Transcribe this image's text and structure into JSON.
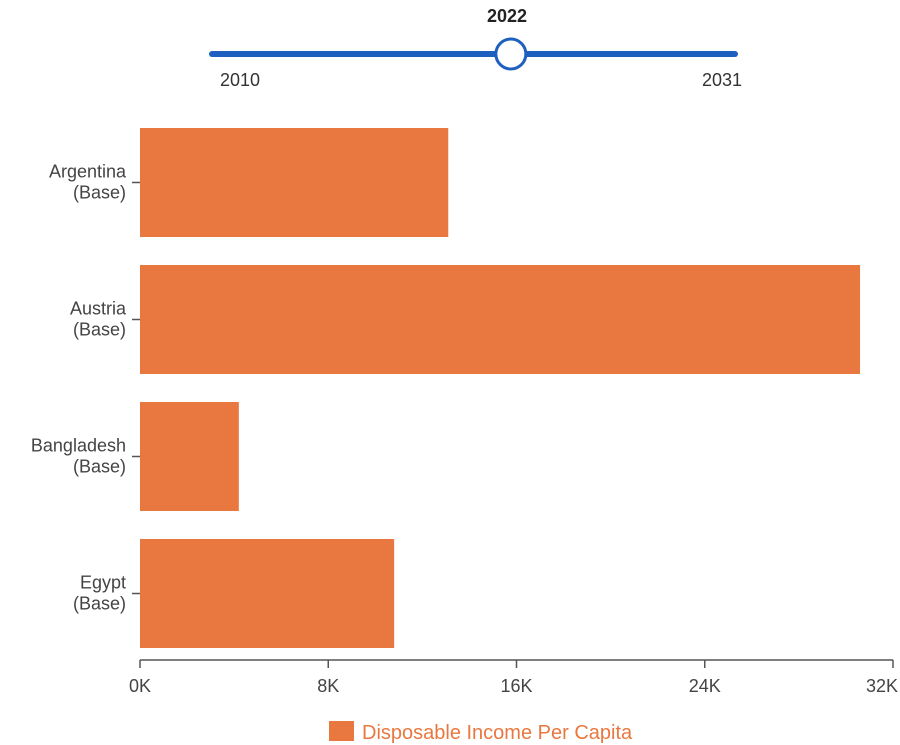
{
  "slider": {
    "current_label": "2022",
    "min_label": "2010",
    "max_label": "2031",
    "min": 2010,
    "max": 2031,
    "value": 2022,
    "track_color": "#1f5fbf",
    "thumb_fill": "#ffffff"
  },
  "chart_data": {
    "type": "bar",
    "orientation": "horizontal",
    "categories": [
      [
        "Argentina",
        "(Base)"
      ],
      [
        "Austria",
        "(Base)"
      ],
      [
        "Bangladesh",
        "(Base)"
      ],
      [
        "Egypt",
        "(Base)"
      ]
    ],
    "series": [
      {
        "name": "Disposable Income Per Capita",
        "color": "#e8783f",
        "values": [
          13100,
          30600,
          4200,
          10800
        ]
      }
    ],
    "x_ticks": [
      0,
      8000,
      16000,
      24000,
      32000
    ],
    "x_tick_labels": [
      "0K",
      "8K",
      "16K",
      "24K",
      "32K"
    ],
    "xlim": [
      0,
      32000
    ],
    "grid": false,
    "legend_position": "bottom-center"
  }
}
